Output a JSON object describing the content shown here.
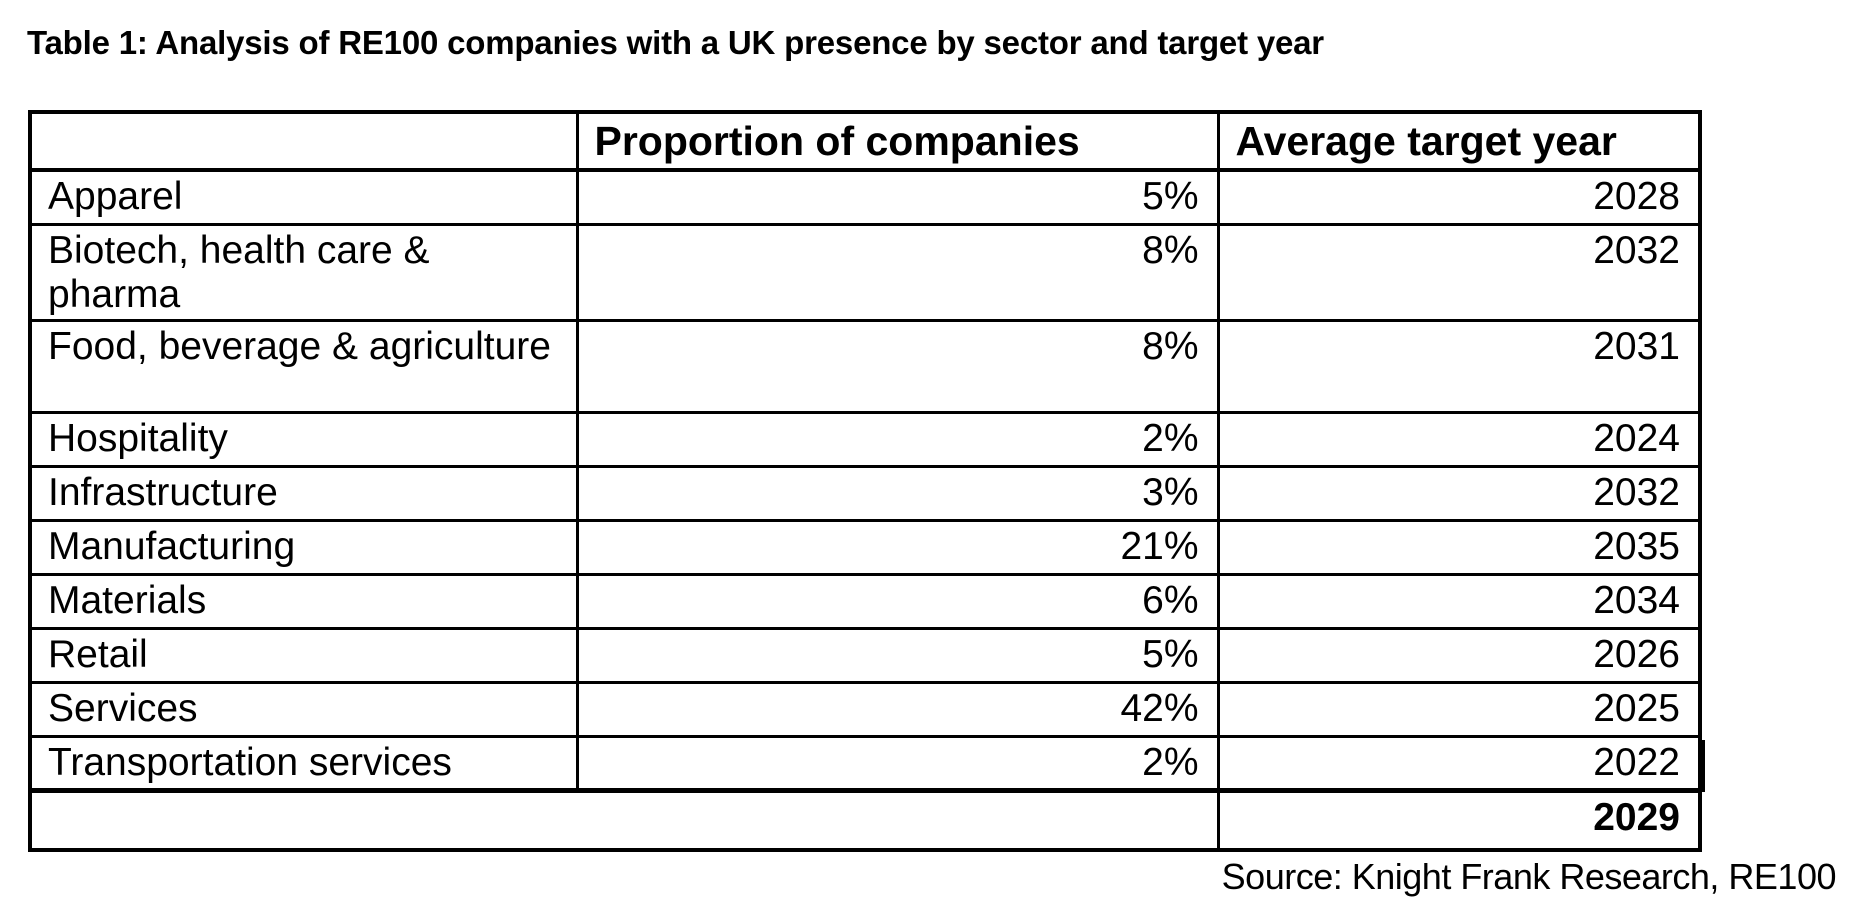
{
  "document": {
    "title": "Table 1: Analysis of RE100 companies with a UK presence by sector and target year",
    "source": "Source: Knight Frank Research, RE100"
  },
  "table": {
    "headers": {
      "sector": "",
      "proportion": "Proportion of companies",
      "target_year": "Average target year"
    },
    "rows": [
      {
        "sector": "Apparel",
        "proportion": "5%",
        "target_year": "2028"
      },
      {
        "sector": "Biotech, health care & pharma",
        "proportion": "8%",
        "target_year": "2032"
      },
      {
        "sector": "Food, beverage & agriculture",
        "proportion": "8%",
        "target_year": "2031"
      },
      {
        "sector": "Hospitality",
        "proportion": "2%",
        "target_year": "2024"
      },
      {
        "sector": "Infrastructure",
        "proportion": "3%",
        "target_year": "2032"
      },
      {
        "sector": "Manufacturing",
        "proportion": "21%",
        "target_year": "2035"
      },
      {
        "sector": "Materials",
        "proportion": "6%",
        "target_year": "2034"
      },
      {
        "sector": "Retail",
        "proportion": "5%",
        "target_year": "2026"
      },
      {
        "sector": "Services",
        "proportion": "42%",
        "target_year": "2025"
      },
      {
        "sector": "Transportation services",
        "proportion": "2%",
        "target_year": "2022"
      }
    ],
    "summary_row": {
      "label": "",
      "average_target_year": "2029"
    }
  },
  "colors": {
    "text": "#000000",
    "border": "#000000",
    "background": "#ffffff"
  }
}
